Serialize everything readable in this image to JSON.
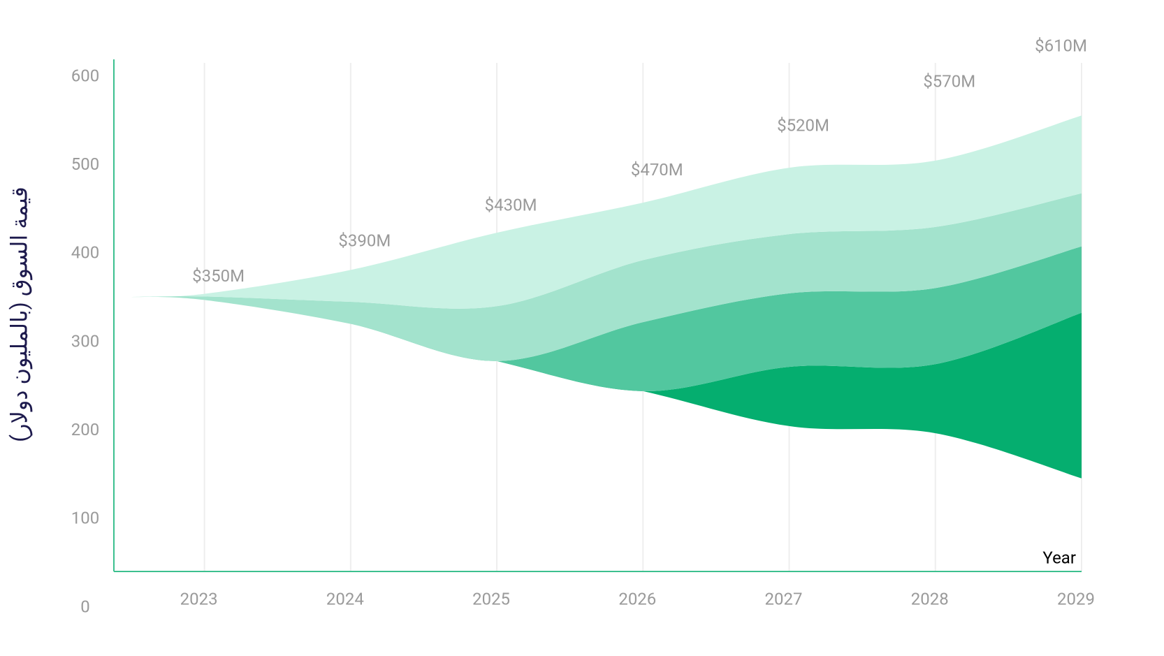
{
  "chart_data": {
    "type": "streamgraph",
    "y_label": "قيمة السوق (بالمليون دولار)",
    "x_label": "Year",
    "x": [
      2022.5,
      2023,
      2024,
      2025,
      2026,
      2027,
      2028,
      2029
    ],
    "series": [
      {
        "color": "#05ae6f",
        "values": [
          0,
          0,
          0,
          0,
          0,
          67,
          78,
          187
        ]
      },
      {
        "color": "#52c79f",
        "values": [
          0,
          0,
          0,
          0,
          78,
          83,
          86,
          75
        ]
      },
      {
        "color": "#a3e3cd",
        "values": [
          0,
          4,
          25,
          62,
          70,
          67,
          69,
          60
        ]
      },
      {
        "color": "#c9f2e4",
        "values": [
          0,
          3,
          36,
          83,
          65,
          75,
          75,
          88
        ]
      }
    ],
    "totals": {
      "x": [
        2023,
        2024,
        2025,
        2026,
        2027,
        2028,
        2029
      ],
      "values": [
        350,
        390,
        430,
        470,
        520,
        570,
        610
      ],
      "value_labels": [
        "$350M",
        "$390M",
        "$430M",
        "$470M",
        "$520M",
        "$570M",
        "$610M"
      ]
    },
    "xlim": [
      2022.5,
      2029
    ],
    "xticks": [
      2023,
      2024,
      2025,
      2026,
      2027,
      2028,
      2029
    ],
    "ylim": [
      0,
      600
    ],
    "yticks": [
      0,
      100,
      200,
      300,
      400,
      500,
      600
    ],
    "grid": true,
    "axis_color": "#3cc08f"
  }
}
